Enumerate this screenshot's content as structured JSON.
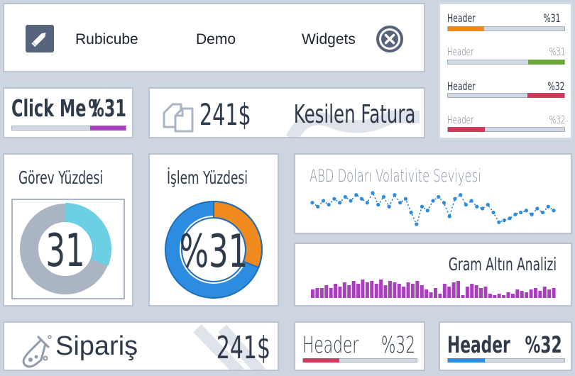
{
  "colors": {
    "background": "#cdd5e0",
    "dark_text": "#2f3a4b",
    "purple": "#a93fbf",
    "orange": "#f08a1c",
    "green": "#6ca53a",
    "red": "#d13a5a",
    "blue": "#2c8de0",
    "cyan": "#6dcfe3",
    "gray_ring": "#aab4c3"
  },
  "nav": {
    "edit_icon": "pencil-icon",
    "close_icon": "close-circle-icon",
    "items": [
      "Rubicube",
      "Demo",
      "Widgets"
    ]
  },
  "header_bars": [
    {
      "label": "Header",
      "value": "%31",
      "progress": 0.31,
      "color": "#f08a1c",
      "align": "left"
    },
    {
      "label": "Header",
      "value": "%31",
      "progress": 0.31,
      "color": "#6ca53a",
      "align": "right"
    },
    {
      "label": "Header",
      "value": "%32",
      "progress": 0.32,
      "color": "#d13a5a",
      "align": "right"
    },
    {
      "label": "Header",
      "value": "%32",
      "progress": 0.32,
      "color": "#d13a5a",
      "align": "left"
    }
  ],
  "click_me": {
    "label": "Click Me !",
    "value": "%31",
    "progress": 0.31,
    "color": "#a93fbf"
  },
  "invoice": {
    "icon": "copy-icon",
    "amount": "241$",
    "label": "Kesilen Fatura"
  },
  "gorev": {
    "title": "Görev Yüzdesi",
    "center": "31",
    "percent": 31
  },
  "islem": {
    "title": "İşlem Yüzdesi",
    "center": "%31",
    "percent": 31
  },
  "abd": {
    "title": "ABD Doları Volativite Seviyesi",
    "chart_data": {
      "type": "line",
      "values": [
        13,
        11,
        14,
        12,
        15,
        13,
        16,
        14,
        17,
        15,
        13,
        18,
        12,
        16,
        11,
        17,
        13,
        15,
        8,
        2,
        11,
        9,
        14,
        16,
        13,
        6,
        15,
        17,
        12,
        14,
        11,
        10,
        12,
        8,
        3,
        4,
        5,
        7,
        8,
        9,
        7,
        10,
        8,
        11,
        9
      ]
    }
  },
  "gram": {
    "title": "Gram Altın Analizi",
    "chart_data": {
      "type": "bar",
      "values": [
        6,
        7,
        7,
        9,
        7,
        10,
        8,
        11,
        9,
        12,
        10,
        13,
        11,
        12,
        10,
        13,
        9,
        12,
        11,
        10,
        8,
        11,
        10,
        12,
        9,
        6,
        4,
        7,
        3,
        10,
        8,
        11,
        12,
        2,
        8,
        10,
        9,
        7,
        8,
        3,
        2,
        3,
        2,
        4,
        3,
        6,
        5,
        4,
        6,
        7,
        5,
        8,
        6,
        7
      ]
    }
  },
  "siparis": {
    "icon": "flask-icon",
    "label": "Sipariş",
    "amount": "241$"
  },
  "bottom_mid": {
    "label": "Header",
    "value": "%32",
    "progress": 0.32,
    "color": "#d13a5a"
  },
  "bottom_right": {
    "label": "Header",
    "value": "%32",
    "progress": 0.32,
    "color": "#2c8de0"
  }
}
